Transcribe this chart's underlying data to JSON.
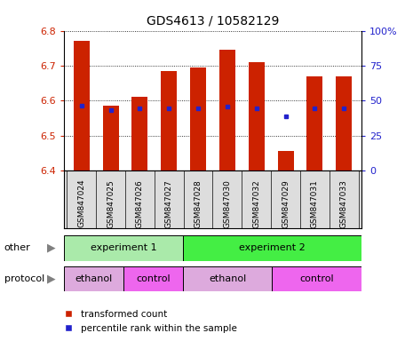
{
  "title": "GDS4613 / 10582129",
  "samples": [
    "GSM847024",
    "GSM847025",
    "GSM847026",
    "GSM847027",
    "GSM847028",
    "GSM847030",
    "GSM847032",
    "GSM847029",
    "GSM847031",
    "GSM847033"
  ],
  "transformed_count": [
    6.77,
    6.585,
    6.61,
    6.685,
    6.695,
    6.745,
    6.71,
    6.455,
    6.67,
    6.67
  ],
  "percentile_rank": [
    6.585,
    6.572,
    6.578,
    6.578,
    6.578,
    6.582,
    6.578,
    6.555,
    6.578,
    6.578
  ],
  "ylim": [
    6.4,
    6.8
  ],
  "right_ylim": [
    0,
    100
  ],
  "right_yticks": [
    0,
    25,
    50,
    75,
    100
  ],
  "right_yticklabels": [
    "0",
    "25",
    "50",
    "75",
    "100%"
  ],
  "left_yticks": [
    6.4,
    6.5,
    6.6,
    6.7,
    6.8
  ],
  "bar_color": "#cc2200",
  "dot_color": "#2222cc",
  "bar_bottom": 6.4,
  "other_row": [
    {
      "label": "experiment 1",
      "start": 0,
      "end": 4,
      "color": "#aaeaaa"
    },
    {
      "label": "experiment 2",
      "start": 4,
      "end": 10,
      "color": "#44ee44"
    }
  ],
  "protocol_row": [
    {
      "label": "ethanol",
      "start": 0,
      "end": 2,
      "color": "#ddaadd"
    },
    {
      "label": "control",
      "start": 2,
      "end": 4,
      "color": "#ee66ee"
    },
    {
      "label": "ethanol",
      "start": 4,
      "end": 7,
      "color": "#ddaadd"
    },
    {
      "label": "control",
      "start": 7,
      "end": 10,
      "color": "#ee66ee"
    }
  ],
  "legend_items": [
    {
      "label": "transformed count",
      "color": "#cc2200"
    },
    {
      "label": "percentile rank within the sample",
      "color": "#2222cc"
    }
  ],
  "axis_color_left": "#cc2200",
  "axis_color_right": "#2222cc",
  "row_label_other": "other",
  "row_label_protocol": "protocol",
  "figsize": [
    4.65,
    3.84
  ],
  "dpi": 100
}
